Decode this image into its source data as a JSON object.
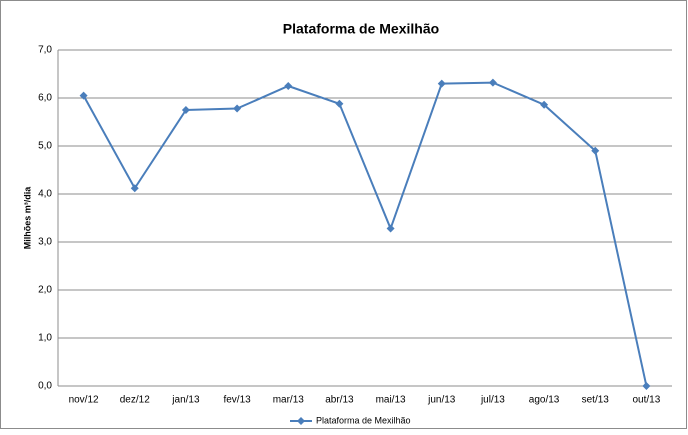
{
  "chart_data": {
    "type": "line",
    "title": "Plataforma de Mexilhão",
    "y_label": "Milhões m³/dia",
    "categories": [
      "nov/12",
      "dez/12",
      "jan/13",
      "fev/13",
      "mar/13",
      "abr/13",
      "mai/13",
      "jun/13",
      "jul/13",
      "ago/13",
      "set/13",
      "out/13"
    ],
    "series": [
      {
        "name": "Plataforma de Mexilhão",
        "color": "#4a7ebb",
        "values": [
          6.05,
          4.12,
          5.75,
          5.78,
          6.25,
          5.88,
          3.28,
          6.3,
          6.32,
          5.86,
          4.9,
          0.0
        ]
      }
    ],
    "ylim": [
      0,
      7
    ],
    "yticks": [
      {
        "value": 0,
        "label": "0,0"
      },
      {
        "value": 1,
        "label": "1,0"
      },
      {
        "value": 2,
        "label": "2,0"
      },
      {
        "value": 3,
        "label": "3,0"
      },
      {
        "value": 4,
        "label": "4,0"
      },
      {
        "value": 5,
        "label": "5,0"
      },
      {
        "value": 6,
        "label": "6,0"
      },
      {
        "value": 7,
        "label": "7,0"
      }
    ],
    "grid": true,
    "legend": "bottom"
  }
}
